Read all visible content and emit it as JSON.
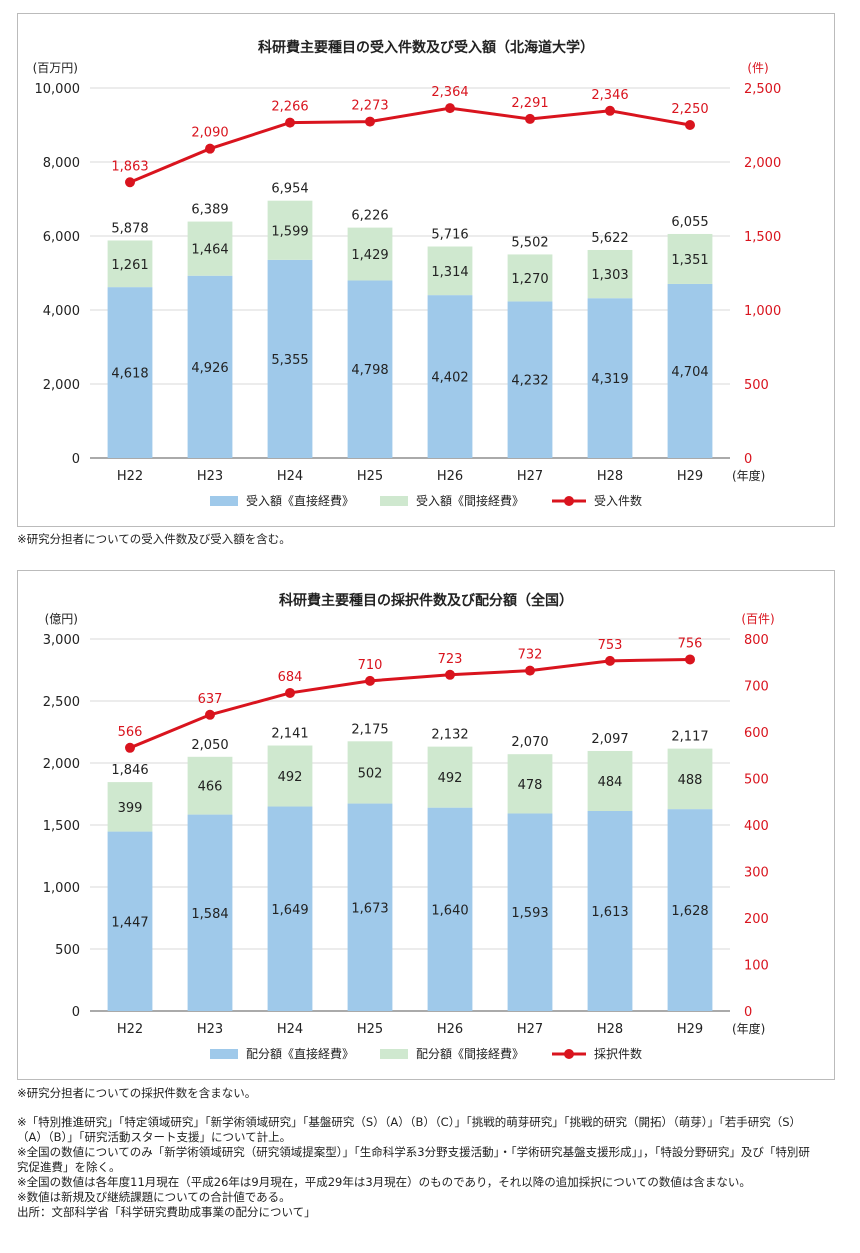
{
  "colors": {
    "direct": "#9fc9ea",
    "indirect": "#cfe8cf",
    "line": "#d9141e",
    "axis": "#333333",
    "grid": "#d8d8d8"
  },
  "chart_data": [
    {
      "type": "bar",
      "title": "科研費主要種目の受入件数及び受入額（北海道大学）",
      "categories": [
        "H22",
        "H23",
        "H24",
        "H25",
        "H26",
        "H27",
        "H28",
        "H29"
      ],
      "x_unit_label": "(年度)",
      "left_unit_label": "(百万円)",
      "right_unit_label": "(件)",
      "left_ylim": [
        0,
        10000
      ],
      "left_ticks": [
        "0",
        "2,000",
        "4,000",
        "6,000",
        "8,000",
        "10,000"
      ],
      "right_ylim": [
        0,
        2500
      ],
      "right_ticks": [
        "0",
        "500",
        "1,000",
        "1,500",
        "2,000",
        "2,500"
      ],
      "series": [
        {
          "name": "受入額《直接経費》",
          "values": [
            4618,
            4926,
            5355,
            4798,
            4402,
            4232,
            4319,
            4704
          ],
          "labels": [
            "4,618",
            "4,926",
            "5,355",
            "4,798",
            "4,402",
            "4,232",
            "4,319",
            "4,704"
          ]
        },
        {
          "name": "受入額《間接経費》",
          "values": [
            1261,
            1464,
            1599,
            1429,
            1314,
            1270,
            1303,
            1351
          ],
          "labels": [
            "1,261",
            "1,464",
            "1,599",
            "1,429",
            "1,314",
            "1,270",
            "1,303",
            "1,351"
          ]
        },
        {
          "name": "受入件数",
          "axis": "right",
          "values": [
            1863,
            2090,
            2266,
            2273,
            2364,
            2291,
            2346,
            2250
          ],
          "labels": [
            "1,863",
            "2,090",
            "2,266",
            "2,273",
            "2,364",
            "2,291",
            "2,346",
            "2,250"
          ]
        }
      ],
      "totals": [
        5878,
        6389,
        6954,
        6226,
        5716,
        5502,
        5622,
        6055
      ],
      "total_labels": [
        "5,878",
        "6,389",
        "6,954",
        "6,226",
        "5,716",
        "5,502",
        "5,622",
        "6,055"
      ]
    },
    {
      "type": "bar",
      "title": "科研費主要種目の採択件数及び配分額（全国）",
      "categories": [
        "H22",
        "H23",
        "H24",
        "H25",
        "H26",
        "H27",
        "H28",
        "H29"
      ],
      "x_unit_label": "(年度)",
      "left_unit_label": "(億円)",
      "right_unit_label": "(百件)",
      "left_ylim": [
        0,
        3000
      ],
      "left_ticks": [
        "0",
        "500",
        "1,000",
        "1,500",
        "2,000",
        "2,500",
        "3,000"
      ],
      "right_ylim": [
        0,
        800
      ],
      "right_ticks": [
        "0",
        "100",
        "200",
        "300",
        "400",
        "500",
        "600",
        "700",
        "800"
      ],
      "series": [
        {
          "name": "配分額《直接経費》",
          "values": [
            1447,
            1584,
            1649,
            1673,
            1640,
            1593,
            1613,
            1628
          ],
          "labels": [
            "1,447",
            "1,584",
            "1,649",
            "1,673",
            "1,640",
            "1,593",
            "1,613",
            "1,628"
          ]
        },
        {
          "name": "配分額《間接経費》",
          "values": [
            399,
            466,
            492,
            502,
            492,
            478,
            484,
            488
          ],
          "labels": [
            "399",
            "466",
            "492",
            "502",
            "492",
            "478",
            "484",
            "488"
          ]
        },
        {
          "name": "採択件数",
          "axis": "right",
          "values": [
            566,
            637,
            684,
            710,
            723,
            732,
            753,
            756
          ],
          "labels": [
            "566",
            "637",
            "684",
            "710",
            "723",
            "732",
            "753",
            "756"
          ]
        }
      ],
      "totals": [
        1846,
        2050,
        2141,
        2175,
        2132,
        2070,
        2097,
        2117
      ],
      "total_labels": [
        "1,846",
        "2,050",
        "2,141",
        "2,175",
        "2,132",
        "2,070",
        "2,097",
        "2,117"
      ]
    }
  ],
  "notes": {
    "chart1_note": "※研究分担者についての受入件数及び受入額を含む。",
    "chart2_note": "※研究分担者についての採択件数を含まない。",
    "footnotes": [
      "※「特別推進研究」「特定領域研究」「新学術領域研究」「基盤研究（S）（A）（B）（C）」「挑戦的萌芽研究」「挑戦的研究（開拓）（萌芽）」「若手研究（S）（A）（B）」「研究活動スタート支援」について計上。",
      "※全国の数値についてのみ「新学術領域研究（研究領域提案型）」「生命科学系3分野支援活動」・「学術研究基盤支援形成」」，「特設分野研究」及び「特別研究促進費」を除く。",
      "※全国の数値は各年度11月現在（平成26年は9月現在，平成29年は3月現在）のものであり，それ以降の追加採択についての数値は含まない。",
      "※数値は新規及び継続課題についての合計値である。",
      "出所：文部科学省「科学研究費助成事業の配分について」"
    ]
  }
}
